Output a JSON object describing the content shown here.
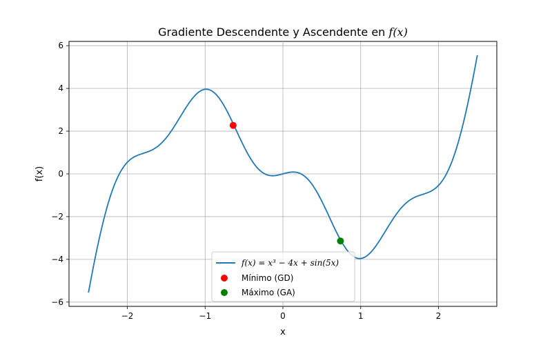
{
  "chart_data": {
    "type": "line",
    "title": "Gradiente Descendente y Ascendente en f(x)",
    "title_prefix": "Gradiente Descendente y Ascendente en ",
    "title_math": "f(x)",
    "xlabel": "x",
    "ylabel": "f(x)",
    "xlim": [
      -2.75,
      2.75
    ],
    "ylim": [
      -6.2,
      6.2
    ],
    "x_ticks": [
      -2,
      -1,
      0,
      1,
      2
    ],
    "y_ticks": [
      -6,
      -4,
      -2,
      0,
      2,
      4,
      6
    ],
    "x_tick_labels": [
      "−2",
      "−1",
      "0",
      "1",
      "2"
    ],
    "y_tick_labels": [
      "−6",
      "−4",
      "−2",
      "0",
      "2",
      "4",
      "6"
    ],
    "grid": true,
    "legend_position": "lower center",
    "series": [
      {
        "name": "f(x) = x³ − 4x + sin(5x)",
        "color": "#1f77b4",
        "function": "x^3 - 4x + sin(5x)",
        "x_range": [
          -2.5,
          2.5
        ]
      }
    ],
    "points": [
      {
        "name": "Mínimo (GD)",
        "x": -0.64,
        "y": 2.27,
        "color": "#ff0000"
      },
      {
        "name": "Máximo (GA)",
        "x": 0.74,
        "y": -3.14,
        "color": "#008000"
      }
    ],
    "legend": {
      "line_label": "f(x) = x³ − 4x + sin(5x)",
      "min_label": "Mínimo (GD)",
      "max_label": "Máximo (GA)"
    }
  }
}
